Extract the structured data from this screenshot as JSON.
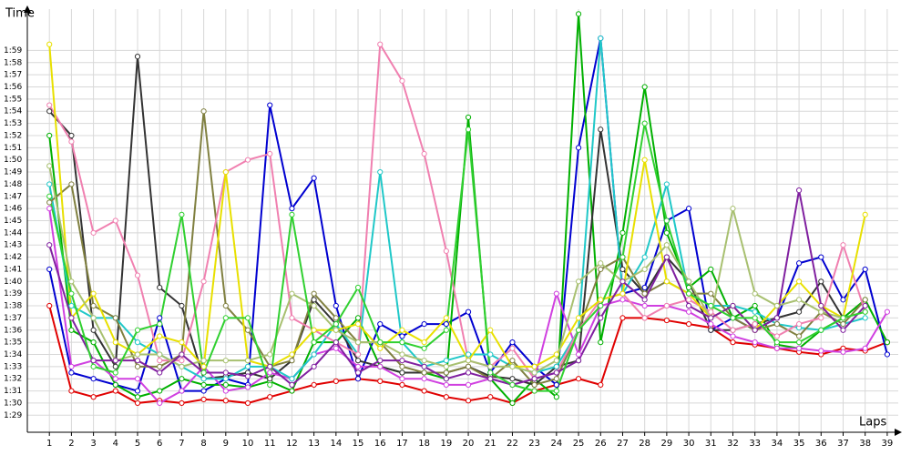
{
  "chart_data": {
    "type": "line",
    "y_label": "Time",
    "x_label": "Laps",
    "x": [
      1,
      2,
      3,
      4,
      5,
      6,
      7,
      8,
      9,
      10,
      11,
      12,
      13,
      14,
      15,
      16,
      17,
      18,
      19,
      20,
      21,
      22,
      23,
      24,
      25,
      26,
      27,
      28,
      29,
      30,
      31,
      32,
      33,
      34,
      35,
      36,
      37,
      38,
      39
    ],
    "xlim": [
      0,
      39.5
    ],
    "ylim": [
      87.6,
      122.4
    ],
    "grid": true,
    "yticks": [
      {
        "value": 89,
        "label": "1:29"
      },
      {
        "value": 90,
        "label": "1:30"
      },
      {
        "value": 91,
        "label": "1:31"
      },
      {
        "value": 92,
        "label": "1:32"
      },
      {
        "value": 93,
        "label": "1:33"
      },
      {
        "value": 94,
        "label": "1:34"
      },
      {
        "value": 95,
        "label": "1:35"
      },
      {
        "value": 96,
        "label": "1:36"
      },
      {
        "value": 97,
        "label": "1:37"
      },
      {
        "value": 98,
        "label": "1:38"
      },
      {
        "value": 99,
        "label": "1:39"
      },
      {
        "value": 100,
        "label": "1:40"
      },
      {
        "value": 101,
        "label": "1:41"
      },
      {
        "value": 102,
        "label": "1:42"
      },
      {
        "value": 103,
        "label": "1:43"
      },
      {
        "value": 104,
        "label": "1:44"
      },
      {
        "value": 105,
        "label": "1:45"
      },
      {
        "value": 106,
        "label": "1:46"
      },
      {
        "value": 107,
        "label": "1:47"
      },
      {
        "value": 108,
        "label": "1:48"
      },
      {
        "value": 109,
        "label": "1:49"
      },
      {
        "value": 110,
        "label": "1:50"
      },
      {
        "value": 111,
        "label": "1:51"
      },
      {
        "value": 112,
        "label": "1:52"
      },
      {
        "value": 113,
        "label": "1:53"
      },
      {
        "value": 114,
        "label": "1:54"
      },
      {
        "value": 115,
        "label": "1:55"
      },
      {
        "value": 116,
        "label": "1:56"
      },
      {
        "value": 117,
        "label": "1:57"
      },
      {
        "value": 118,
        "label": "1:58"
      },
      {
        "value": 119,
        "label": "1:59"
      }
    ],
    "series": [
      {
        "color": "#e00000",
        "values": [
          98,
          91,
          90.5,
          91,
          90,
          90.2,
          90,
          90.3,
          90.2,
          90,
          90.5,
          91,
          91.5,
          91.8,
          92,
          91.8,
          91.5,
          91,
          90.5,
          90.2,
          90.5,
          90,
          91,
          91.5,
          92,
          91.5,
          97,
          97,
          96.8,
          96.5,
          96.2,
          95,
          94.8,
          94.5,
          94.2,
          94,
          94.5,
          94.3,
          95
        ]
      },
      {
        "color": "#0000d0",
        "values": [
          101,
          92.5,
          92,
          91.5,
          91,
          97,
          91,
          91,
          92,
          91.5,
          114.5,
          106,
          108.5,
          98,
          92,
          96.5,
          95.5,
          96.5,
          96.5,
          97.5,
          92.5,
          95,
          93,
          91.5,
          111,
          120,
          99,
          99.5,
          105,
          106,
          96,
          97,
          96,
          97,
          101.5,
          102,
          98.5,
          101,
          94
        ]
      },
      {
        "color": "#00b000",
        "values": [
          112,
          96,
          95,
          91.5,
          90.5,
          91,
          92,
          91.5,
          91.5,
          91.3,
          91.8,
          91,
          95,
          95,
          97,
          93,
          92.5,
          92.5,
          92,
          113.5,
          92,
          90,
          92,
          90.5,
          122,
          95,
          104,
          116,
          104,
          99.5,
          101,
          97,
          98,
          94.8,
          94.5,
          96,
          97,
          98.5,
          95
        ]
      },
      {
        "color": "#333333",
        "values": [
          114,
          112,
          96,
          93,
          118.5,
          99.5,
          98,
          92,
          92.2,
          92.5,
          92,
          93.5,
          98.5,
          96.5,
          93.5,
          93,
          92.5,
          92.5,
          92.5,
          93,
          92.2,
          92,
          91.5,
          93,
          93.5,
          112.5,
          101,
          99,
          102,
          100,
          96,
          96,
          96.5,
          97,
          97.5,
          100,
          97,
          null,
          null
        ]
      },
      {
        "color": "#d040e0",
        "values": [
          106,
          93,
          93.5,
          92,
          92,
          90,
          91,
          93,
          91,
          91.3,
          92.5,
          92,
          94,
          94.5,
          93,
          93,
          92,
          92,
          91.5,
          91.5,
          92,
          91.5,
          92,
          99,
          94,
          98,
          98.5,
          98,
          98,
          97.5,
          96.5,
          95.5,
          95,
          94.5,
          94.5,
          94.3,
          94.2,
          94.5,
          97.5
        ]
      },
      {
        "color": "#20c8c8",
        "values": [
          108,
          98,
          97,
          97,
          95,
          94,
          93,
          92,
          92,
          93,
          93,
          92,
          94,
          96.5,
          94,
          109,
          95,
          93,
          93.5,
          94,
          94,
          93,
          92.5,
          93,
          96,
          120,
          99,
          102,
          108,
          99,
          98,
          98,
          97.5,
          96.5,
          96.2,
          96,
          96.5,
          97,
          null
        ]
      },
      {
        "color": "#808040",
        "values": [
          106.5,
          108,
          98,
          97,
          93,
          93,
          94,
          114,
          98,
          96,
          93,
          93.5,
          99,
          97,
          95,
          95,
          93,
          92.5,
          92.5,
          93,
          92,
          93.5,
          91.5,
          92,
          96,
          101,
          102,
          99,
          100,
          99,
          99,
          97,
          96,
          96.5,
          95.5,
          97.5,
          96.5,
          98.5,
          null
        ]
      },
      {
        "color": "#f080b0",
        "values": [
          114.5,
          111.5,
          104,
          105,
          100.5,
          93.5,
          93.5,
          100,
          109,
          110,
          110.5,
          97,
          96,
          95,
          94,
          119.5,
          116.5,
          110.5,
          102.5,
          93.5,
          93,
          94.5,
          92,
          92.5,
          96,
          98.5,
          99,
          97,
          98,
          98.5,
          97.5,
          96,
          96.5,
          95.5,
          96.5,
          97,
          103,
          97.5,
          null
        ]
      },
      {
        "color": "#e8e000",
        "values": [
          119.5,
          97,
          99,
          95,
          94,
          95.5,
          95,
          93,
          109,
          93.5,
          93,
          94,
          96,
          96,
          96.5,
          94.5,
          96,
          95,
          97,
          93.5,
          96,
          93,
          93,
          94,
          97,
          98.5,
          99,
          110,
          100,
          99,
          97,
          98,
          96,
          98,
          100,
          98,
          97,
          105.5,
          null
        ]
      },
      {
        "color": "#a8c070",
        "values": [
          109.5,
          100,
          97,
          93.5,
          94,
          94,
          93,
          93.5,
          93.5,
          93.5,
          94,
          99,
          98,
          96,
          95,
          95,
          94,
          93.5,
          93,
          93.5,
          93,
          93,
          92.5,
          93.5,
          100,
          101.5,
          100,
          101,
          103,
          100,
          97,
          106,
          99,
          98,
          98.5,
          97.5,
          97,
          97.5,
          null
        ]
      },
      {
        "color": "#8020a0",
        "values": [
          103,
          97,
          93.5,
          93.5,
          93.5,
          92.5,
          94,
          92.5,
          92.5,
          92.2,
          93,
          91.5,
          93,
          95,
          92.5,
          93.5,
          93.5,
          93,
          92,
          92.5,
          92,
          91.5,
          92,
          92.5,
          93.5,
          97,
          100,
          98.5,
          102,
          98,
          97,
          98,
          96,
          97,
          107.5,
          98,
          96,
          98,
          null
        ]
      },
      {
        "color": "#30d030",
        "values": [
          107,
          99,
          93,
          92.5,
          96,
          96.5,
          105.5,
          92.5,
          97,
          97,
          91.5,
          105.5,
          95,
          96.5,
          99.5,
          95,
          95,
          94.5,
          96,
          112.5,
          92.5,
          91.5,
          91,
          91,
          96,
          98,
          102,
          113,
          105,
          99,
          98,
          97,
          97,
          95,
          95,
          96,
          97,
          97.5,
          null
        ]
      }
    ]
  }
}
